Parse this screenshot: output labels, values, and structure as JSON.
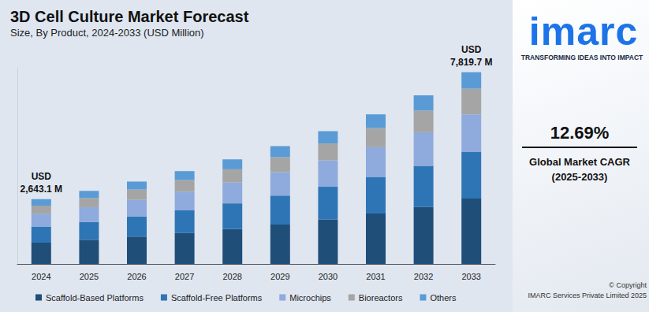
{
  "chart_data": {
    "type": "bar",
    "title": "3D Cell Culture Market Forecast",
    "subtitle": "Size, By Product, 2024-2033 (USD Million)",
    "categories": [
      "2024",
      "2025",
      "2026",
      "2027",
      "2028",
      "2029",
      "2030",
      "2031",
      "2032",
      "2033"
    ],
    "series": [
      {
        "name": "Scaffold-Based Platforms",
        "color": "#1f4e79",
        "values": [
          864.3,
          986,
          1115,
          1260,
          1424,
          1609,
          1818,
          2053,
          2321,
          2666.5
        ]
      },
      {
        "name": "Scaffold-Free Platforms",
        "color": "#2e75b6",
        "values": [
          647.6,
          730,
          823,
          927,
          1045,
          1177,
          1327,
          1494,
          1683,
          1908.0
        ]
      },
      {
        "name": "Microchips",
        "color": "#8faadc",
        "values": [
          539.2,
          600,
          675,
          758,
          852,
          958,
          1078,
          1213,
          1365,
          1524.8
        ]
      },
      {
        "name": "Bioreactors",
        "color": "#a5a5a5",
        "values": [
          322.5,
          370,
          420,
          476,
          539,
          610,
          690,
          781,
          884,
          1047.8
        ]
      },
      {
        "name": "Others",
        "color": "#5b9bd5",
        "values": [
          269.5,
          294,
          327,
          364,
          405,
          451,
          502,
          559,
          622,
          672.6
        ]
      }
    ],
    "stacked": true,
    "ylim": [
      0,
      8000
    ],
    "grid": false,
    "tick_labels": "x",
    "legend": "bottom",
    "annotations": [
      {
        "category": "2024",
        "text": "USD\n2,643.1 M"
      },
      {
        "category": "2033",
        "text": "USD\n7,819.7 M"
      }
    ]
  },
  "side_panel": {
    "logo": "imarc",
    "tagline": "TRANSFORMING IDEAS INTO IMPACT",
    "cagr": "12.69%",
    "cagr_label": "Global Market CAGR\n(2025-2033)",
    "copyright": "© Copyright\nIMARC Services Private Limited 2025"
  }
}
